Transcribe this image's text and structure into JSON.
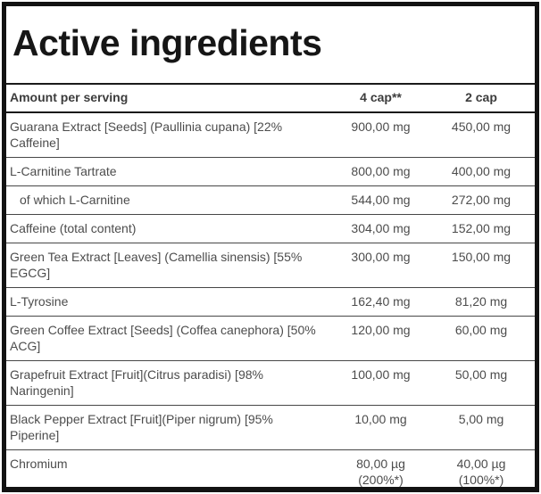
{
  "title": "Active ingredients",
  "table": {
    "headers": {
      "name": "Amount per serving",
      "col4": "4 cap**",
      "col2": "2 cap"
    },
    "rows": [
      {
        "name": "Guarana Extract [Seeds] (Paullinia cupana) [22%\nCaffeine]",
        "indent": false,
        "v4": "900,00 mg",
        "v2": "450,00 mg"
      },
      {
        "name": "L-Carnitine Tartrate",
        "indent": false,
        "v4": "800,00 mg",
        "v2": "400,00 mg"
      },
      {
        "name": "of which L-Carnitine",
        "indent": true,
        "v4": "544,00 mg",
        "v2": "272,00 mg"
      },
      {
        "name": "Caffeine (total content)",
        "indent": false,
        "v4": "304,00 mg",
        "v2": "152,00 mg"
      },
      {
        "name": "Green Tea Extract [Leaves] (Camellia sinensis) [55%\nEGCG]",
        "indent": false,
        "v4": "300,00 mg",
        "v2": "150,00 mg"
      },
      {
        "name": "L-Tyrosine",
        "indent": false,
        "v4": "162,40 mg",
        "v2": "81,20 mg"
      },
      {
        "name": "Green Coffee Extract [Seeds] (Coffea canephora) [50%\nACG]",
        "indent": false,
        "v4": "120,00 mg",
        "v2": "60,00 mg"
      },
      {
        "name": "Grapefruit Extract [Fruit](Citrus paradisi) [98%\nNaringenin]",
        "indent": false,
        "v4": "100,00 mg",
        "v2": "50,00 mg"
      },
      {
        "name": "Black Pepper Extract [Fruit](Piper nigrum) [95% Piperine]",
        "indent": false,
        "v4": "10,00 mg",
        "v2": "5,00 mg"
      },
      {
        "name": "Chromium",
        "indent": false,
        "v4": "80,00 µg\n(200%*)",
        "v2": "40,00 µg\n(100%*)"
      }
    ]
  },
  "colors": {
    "background": "#ffffff",
    "outer_border": "#121212",
    "section_line": "#1a1a1a",
    "row_line": "#474747",
    "title_text": "#161616",
    "header_text": "#3c3c3c",
    "body_text": "#4c4c4c"
  }
}
